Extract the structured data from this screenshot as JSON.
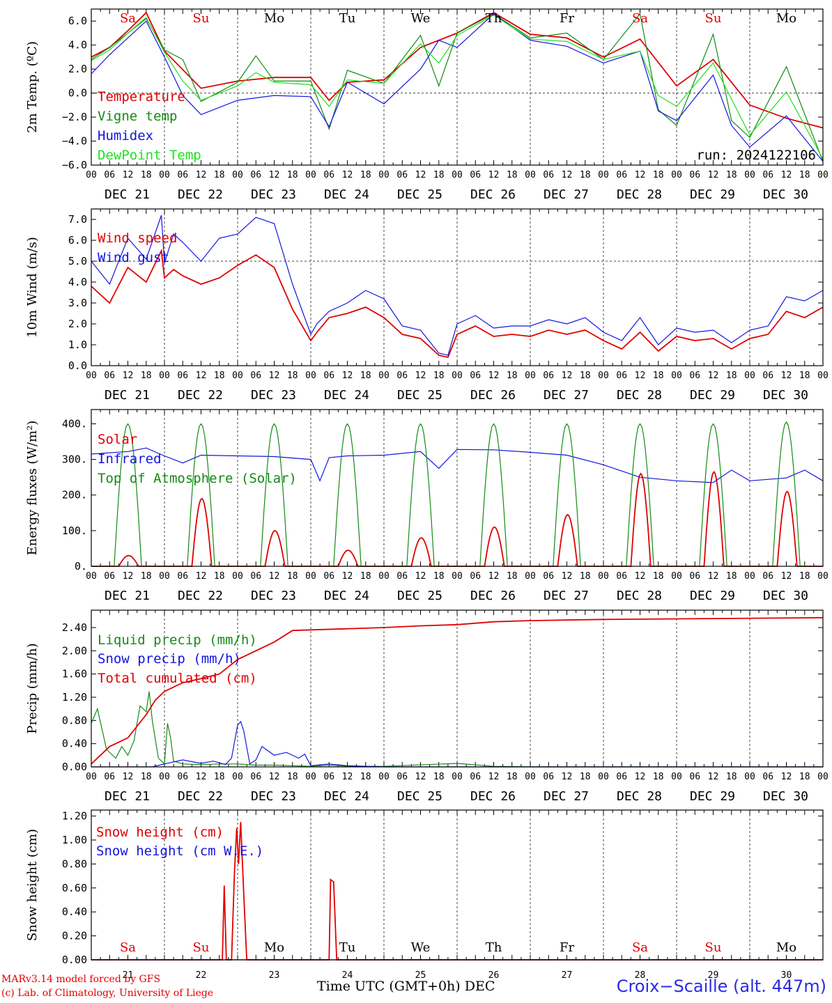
{
  "colors": {
    "red": "#e00000",
    "green": "#138a13",
    "blue": "#1414e0",
    "lightgreen": "#20e020",
    "grid": "#444444",
    "frame": "#000000"
  },
  "days": {
    "names": [
      "Sa",
      "Su",
      "Mo",
      "Tu",
      "We",
      "Th",
      "Fr",
      "Sa",
      "Su",
      "Mo"
    ],
    "name_colors": [
      "red",
      "red",
      "black",
      "black",
      "black",
      "black",
      "black",
      "red",
      "red",
      "black"
    ],
    "dates": [
      "DEC 21",
      "DEC 22",
      "DEC 23",
      "DEC 24",
      "DEC 25",
      "DEC 26",
      "DEC 27",
      "DEC 28",
      "DEC 29",
      "DEC 30"
    ],
    "numbers": [
      "21",
      "22",
      "23",
      "24",
      "25",
      "26",
      "27",
      "28",
      "29",
      "30"
    ],
    "hours": [
      "00",
      "06",
      "12",
      "18"
    ]
  },
  "chart_data": [
    {
      "type": "line",
      "ylabel": "2m Temp. (ºC)",
      "ylim": [
        -6,
        7
      ],
      "yticks": [
        "6.0",
        "4.0",
        "2.0",
        "0.0",
        "−2.0",
        "−4.0",
        "−6.0"
      ],
      "ytick_values": [
        6,
        4,
        2,
        0,
        -2,
        -4,
        -6
      ],
      "ref_line": 0,
      "x_unit": "hours since DEC 21 00 UTC",
      "annotation": "run: 2024122106",
      "series": [
        {
          "name": "Temperature",
          "color": "red",
          "x": [
            0,
            6,
            12,
            18,
            24,
            36,
            48,
            60,
            72,
            78,
            84,
            96,
            108,
            120,
            132,
            144,
            156,
            168,
            180,
            192,
            204,
            216,
            228,
            240
          ],
          "values": [
            3.0,
            3.8,
            5.2,
            6.7,
            3.5,
            0.4,
            1.0,
            1.3,
            1.3,
            -0.6,
            0.9,
            1.1,
            3.8,
            5.0,
            6.7,
            4.9,
            4.6,
            3.0,
            4.5,
            0.6,
            2.8,
            -1.0,
            -2.1,
            -2.9
          ]
        },
        {
          "name": "Vigne temp",
          "color": "green",
          "x": [
            0,
            6,
            12,
            18,
            24,
            30,
            36,
            48,
            54,
            60,
            72,
            78,
            84,
            96,
            108,
            114,
            120,
            132,
            144,
            156,
            168,
            180,
            186,
            192,
            204,
            210,
            216,
            228,
            240
          ],
          "values": [
            2.8,
            3.8,
            5.0,
            6.2,
            3.6,
            2.8,
            -0.7,
            0.9,
            3.1,
            1.0,
            1.0,
            -3.0,
            1.9,
            0.8,
            4.8,
            0.6,
            5.0,
            6.6,
            4.6,
            5.0,
            2.8,
            6.6,
            -1.4,
            -2.7,
            4.9,
            -2.3,
            -3.7,
            2.2,
            -5.7
          ]
        },
        {
          "name": "Humidex",
          "color": "blue",
          "x": [
            0,
            6,
            12,
            18,
            24,
            30,
            36,
            48,
            60,
            72,
            78,
            84,
            96,
            108,
            114,
            120,
            132,
            144,
            156,
            168,
            180,
            186,
            192,
            204,
            210,
            216,
            228,
            240
          ],
          "values": [
            1.6,
            3.2,
            4.6,
            6.0,
            3.0,
            -0.2,
            -1.8,
            -0.6,
            -0.2,
            -0.3,
            -2.8,
            0.9,
            -0.9,
            2.0,
            4.4,
            3.8,
            6.6,
            4.4,
            3.9,
            2.5,
            3.5,
            -1.5,
            -2.3,
            1.5,
            -2.7,
            -4.5,
            -1.9,
            -5.7
          ]
        },
        {
          "name": "DewPoint Temp",
          "color": "lightgreen",
          "x": [
            0,
            6,
            12,
            18,
            24,
            30,
            36,
            48,
            54,
            60,
            72,
            78,
            84,
            96,
            108,
            114,
            120,
            132,
            144,
            156,
            168,
            180,
            186,
            192,
            204,
            216,
            228,
            240
          ],
          "values": [
            2.7,
            3.6,
            5.0,
            6.3,
            3.4,
            1.0,
            -0.6,
            0.6,
            1.7,
            0.9,
            0.7,
            -1.1,
            1.1,
            0.8,
            4.1,
            2.5,
            4.8,
            6.5,
            4.5,
            4.3,
            2.8,
            3.5,
            -0.2,
            -1.1,
            2.5,
            -3.5,
            0.1,
            -5.5
          ]
        }
      ]
    },
    {
      "type": "line",
      "ylabel": "10m Wind (m/s)",
      "ylim": [
        0,
        7.5
      ],
      "yticks": [
        "7.0",
        "6.0",
        "5.0",
        "4.0",
        "3.0",
        "2.0",
        "1.0",
        "0.0"
      ],
      "ytick_values": [
        7,
        6,
        5,
        4,
        3,
        2,
        1,
        0
      ],
      "ref_line": 5,
      "series": [
        {
          "name": "Wind speed",
          "color": "red",
          "x": [
            0,
            6,
            12,
            18,
            23,
            24,
            27,
            30,
            36,
            42,
            48,
            54,
            60,
            66,
            72,
            74,
            78,
            84,
            90,
            96,
            102,
            108,
            114,
            117,
            120,
            126,
            132,
            138,
            144,
            150,
            156,
            162,
            168,
            174,
            180,
            186,
            192,
            198,
            204,
            210,
            216,
            222,
            228,
            234,
            240
          ],
          "values": [
            3.8,
            3.0,
            4.7,
            4.0,
            5.5,
            4.2,
            4.6,
            4.3,
            3.9,
            4.2,
            4.8,
            5.3,
            4.7,
            2.7,
            1.2,
            1.6,
            2.3,
            2.5,
            2.8,
            2.3,
            1.5,
            1.3,
            0.5,
            0.4,
            1.5,
            1.9,
            1.4,
            1.5,
            1.4,
            1.7,
            1.5,
            1.7,
            1.2,
            0.8,
            1.6,
            0.7,
            1.4,
            1.2,
            1.3,
            0.8,
            1.3,
            1.5,
            2.6,
            2.3,
            2.8
          ]
        },
        {
          "name": "Wind gust",
          "color": "blue",
          "x": [
            0,
            6,
            12,
            18,
            23,
            24,
            27,
            30,
            36,
            42,
            48,
            54,
            60,
            66,
            72,
            74,
            78,
            84,
            90,
            96,
            102,
            108,
            114,
            117,
            120,
            126,
            132,
            138,
            144,
            150,
            156,
            162,
            168,
            174,
            180,
            186,
            192,
            198,
            204,
            210,
            216,
            222,
            228,
            234,
            240
          ],
          "values": [
            5.0,
            3.9,
            6.1,
            5.1,
            7.2,
            4.9,
            6.3,
            5.9,
            5.0,
            6.1,
            6.3,
            7.1,
            6.8,
            3.9,
            1.5,
            2.0,
            2.6,
            3.0,
            3.6,
            3.2,
            1.9,
            1.7,
            0.6,
            0.5,
            2.0,
            2.4,
            1.8,
            1.9,
            1.9,
            2.2,
            2.0,
            2.3,
            1.6,
            1.2,
            2.3,
            1.0,
            1.8,
            1.6,
            1.7,
            1.1,
            1.7,
            1.9,
            3.3,
            3.1,
            3.6
          ]
        }
      ]
    },
    {
      "type": "line",
      "ylabel": "Energy fluxes (W/m²)",
      "ylim": [
        0,
        440
      ],
      "yticks": [
        "400.",
        "300.",
        "200.",
        "100.",
        "0."
      ],
      "ytick_values": [
        400,
        300,
        200,
        100,
        0
      ],
      "series": [
        {
          "name": "Solar",
          "color": "red",
          "peaks": [
            30,
            190,
            100,
            45,
            80,
            110,
            145,
            260,
            265,
            210
          ]
        },
        {
          "name": "Infrared",
          "color": "blue",
          "x": [
            0,
            12,
            18,
            24,
            30,
            36,
            48,
            60,
            72,
            75,
            78,
            84,
            96,
            108,
            114,
            120,
            132,
            144,
            156,
            168,
            180,
            192,
            204,
            210,
            216,
            228,
            234,
            240
          ],
          "values": [
            315,
            322,
            332,
            310,
            290,
            312,
            310,
            308,
            300,
            240,
            305,
            310,
            312,
            322,
            275,
            328,
            327,
            320,
            312,
            285,
            250,
            240,
            235,
            270,
            240,
            248,
            270,
            240
          ]
        },
        {
          "name": "Top of Atmosphere (Solar)",
          "color": "green",
          "peaks": [
            400,
            400,
            400,
            400,
            400,
            400,
            400,
            400,
            400,
            405
          ]
        }
      ]
    },
    {
      "type": "line",
      "ylabel": "Precip (mm/h)",
      "ylim": [
        0,
        2.7
      ],
      "yticks": [
        "2.40",
        "2.00",
        "1.60",
        "1.20",
        "0.80",
        "0.40",
        "0.00"
      ],
      "ytick_values": [
        2.4,
        2.0,
        1.6,
        1.2,
        0.8,
        0.4,
        0.0
      ],
      "series": [
        {
          "name": "Liquid precip (mm/h)",
          "color": "green",
          "x": [
            0,
            2,
            5,
            8,
            10,
            12,
            14,
            16,
            18,
            19,
            20,
            22,
            24,
            25,
            26,
            27,
            30,
            36,
            42,
            48,
            54,
            60,
            66,
            72,
            78,
            84,
            96,
            120,
            132,
            144,
            240
          ],
          "values": [
            0.75,
            1.0,
            0.3,
            0.15,
            0.35,
            0.2,
            0.45,
            1.05,
            0.95,
            1.3,
            0.8,
            0.15,
            0.05,
            0.75,
            0.5,
            0.1,
            0.05,
            0.04,
            0.05,
            0.05,
            0.03,
            0.03,
            0.02,
            0.01,
            0.03,
            0.01,
            0.01,
            0.06,
            0.01,
            0.0,
            0.0
          ]
        },
        {
          "name": "Snow precip (mm/h)",
          "color": "blue",
          "x": [
            0,
            20,
            24,
            30,
            36,
            40,
            44,
            46,
            48,
            49,
            50,
            52,
            54,
            56,
            60,
            64,
            68,
            70,
            72,
            78,
            84,
            96,
            120,
            240
          ],
          "values": [
            0,
            0,
            0.05,
            0.12,
            0.06,
            0.1,
            0.04,
            0.15,
            0.72,
            0.78,
            0.62,
            0.05,
            0.12,
            0.35,
            0.2,
            0.25,
            0.15,
            0.22,
            0.02,
            0.05,
            0.02,
            0.0,
            0.0,
            0.0
          ]
        },
        {
          "name": "Total cumulated (cm)",
          "color": "red",
          "x": [
            0,
            6,
            12,
            18,
            21,
            24,
            30,
            36,
            42,
            48,
            54,
            60,
            66,
            72,
            84,
            96,
            108,
            120,
            132,
            144,
            168,
            192,
            240
          ],
          "values": [
            0.05,
            0.35,
            0.5,
            0.9,
            1.15,
            1.3,
            1.45,
            1.52,
            1.6,
            1.85,
            2.0,
            2.15,
            2.35,
            2.36,
            2.38,
            2.4,
            2.43,
            2.45,
            2.5,
            2.52,
            2.54,
            2.55,
            2.57
          ]
        }
      ]
    },
    {
      "type": "line",
      "ylabel": "Snow height (cm)",
      "ylim": [
        0,
        1.25
      ],
      "yticks": [
        "1.20",
        "1.00",
        "0.80",
        "0.60",
        "0.40",
        "0.20",
        "0.00"
      ],
      "ytick_values": [
        1.2,
        1.0,
        0.8,
        0.6,
        0.4,
        0.2,
        0.0
      ],
      "xlabel": "Time UTC (GMT+0h)",
      "xlabel_suffix": "DEC",
      "series": [
        {
          "name": "Snow height (cm)",
          "color": "red",
          "x": [
            0,
            43,
            43.6,
            44.3,
            46,
            47,
            47.7,
            48.3,
            49,
            50,
            51,
            52,
            55,
            78,
            78.5,
            79.5,
            80.5,
            240
          ],
          "values": [
            0,
            0,
            0.62,
            0,
            0,
            0.75,
            1.1,
            0.8,
            1.15,
            0.55,
            0,
            0,
            0,
            0,
            0.67,
            0.65,
            0,
            0
          ]
        },
        {
          "name": "Snow height (cm W.E.)",
          "color": "blue",
          "x": [
            0,
            240
          ],
          "values": [
            0,
            0
          ]
        }
      ]
    }
  ],
  "footer": {
    "credit_line1": "MARv3.14 model forced by GFS",
    "credit_line2": "(c) Lab. of Climatology, University of Liege",
    "station": "Croix−Scaille (alt. 447m)"
  }
}
